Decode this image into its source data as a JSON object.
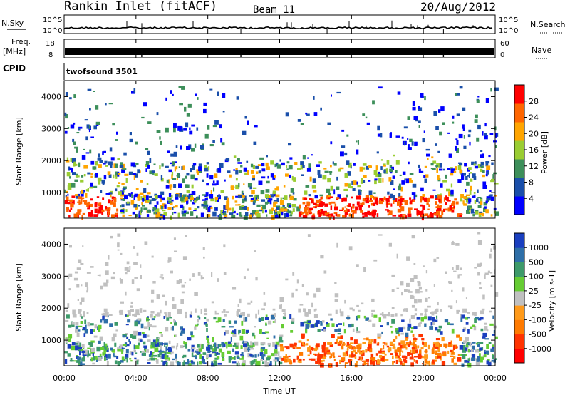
{
  "header": {
    "station": "Rankin Inlet (fitACF)",
    "beam": "Beam 11",
    "date": "20/Aug/2012"
  },
  "colors": {
    "power": [
      "#0000ff",
      "#1a4faa",
      "#3d8f5a",
      "#9acd32",
      "#ffa500",
      "#ff6600",
      "#ff0000"
    ],
    "velocity": [
      "#1a3fbf",
      "#2e6fa8",
      "#3d9a6a",
      "#66cc33",
      "#c0c0c0",
      "#ff9a1a",
      "#ff7a00",
      "#ff3300",
      "#ff0000"
    ],
    "axis": "#000000"
  },
  "chart_data": [
    {
      "type": "line",
      "panel": "N.Sky / N.Search",
      "labels": {
        "left": "N.Sky",
        "right": "N.Search"
      },
      "yticks_left": [
        "10^5",
        "10^0"
      ],
      "yticks_right": [
        "10^5",
        "10^0"
      ]
    },
    {
      "type": "line",
      "panel": "Freq. / Nave",
      "labels": {
        "left": "Freq.",
        "left_unit": "[MHz]",
        "right": "Nave"
      },
      "yticks_left": [
        "18",
        "8"
      ],
      "yticks_right": [
        "60",
        "0"
      ]
    },
    {
      "type": "text",
      "panel": "CPID",
      "label": "CPID",
      "value": "twofsound 3501"
    },
    {
      "type": "heatmap",
      "panel": "Power",
      "ylabel": "Slant Range [km]",
      "yticks": [
        "1000",
        "2000",
        "3000",
        "4000"
      ],
      "ylim": [
        200,
        4500
      ],
      "colorbar_label": "Power [dB]",
      "colorbar_ticks": [
        "4",
        "8",
        "12",
        "16",
        "20",
        "24",
        "28"
      ],
      "colorbar_range": [
        0,
        32
      ]
    },
    {
      "type": "heatmap",
      "panel": "Velocity",
      "ylabel": "Slant Range [km]",
      "yticks": [
        "1000",
        "2000",
        "3000",
        "4000"
      ],
      "ylim": [
        200,
        4500
      ],
      "colorbar_label": "Velocity [m s-1]",
      "colorbar_ticks": [
        "1000",
        "500",
        "100",
        "25",
        "-25",
        "-100",
        "-500",
        "-1000"
      ]
    }
  ],
  "xaxis": {
    "label": "Time UT",
    "ticks": [
      "00:00",
      "04:00",
      "08:00",
      "12:00",
      "16:00",
      "20:00",
      "00:00"
    ],
    "range_hours": [
      0,
      24
    ]
  }
}
